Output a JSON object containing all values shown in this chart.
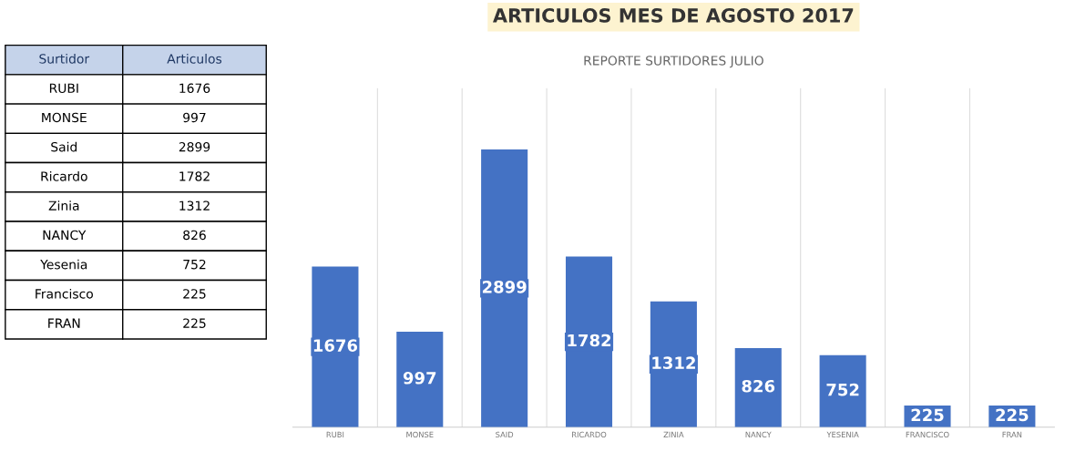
{
  "chart_data": [
    {
      "type": "other",
      "annotations": [
        "Surtidor",
        "Articulos"
      ],
      "categories": [
        "RUBI",
        "MONSE",
        "Said",
        "Ricardo",
        "Zinia",
        "NANCY",
        "Yesenia",
        "Francisco",
        "FRAN"
      ],
      "values": [
        1676,
        997,
        2899,
        1782,
        1312,
        826,
        752,
        225,
        225
      ],
      "data_labels": true
    },
    {
      "type": "bar",
      "title": "ARTICULOS MES DE AGOSTO 2017",
      "subtitle": "REPORTE SURTIDORES JULIO",
      "categories": [
        "RUBI",
        "MONSE",
        "SAID",
        "RICARDO",
        "ZINIA",
        "NANCY",
        "YESENIA",
        "FRANCISCO",
        "FRAN"
      ],
      "values": [
        1676,
        997,
        2899,
        1782,
        1312,
        826,
        752,
        225,
        225
      ],
      "color": "#4472c4",
      "ylim": [
        0,
        3540
      ],
      "tick_labels": "x",
      "data_labels": true,
      "grid": "x"
    }
  ]
}
